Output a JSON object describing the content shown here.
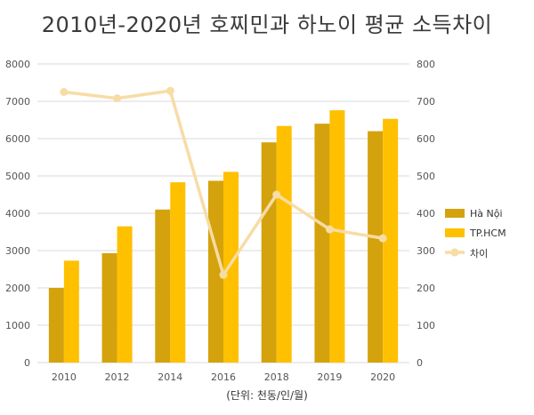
{
  "title": "2010년-2020년 호찌민과 하노이 평균 소득차이",
  "unit_note": "(단위: 천동/인/월)",
  "colors": {
    "hanoi": "#D4A20C",
    "hcm": "#FFC000",
    "diff": "#F7DCA6",
    "grid": "#D9D9D9"
  },
  "chart_data": {
    "type": "bar",
    "categories": [
      "2010",
      "2012",
      "2014",
      "2016",
      "2018",
      "2019",
      "2020"
    ],
    "series": [
      {
        "name": "Hà Nội",
        "type": "bar",
        "axis": "left",
        "values": [
          2000,
          2930,
          4100,
          4870,
          5900,
          6400,
          6200
        ]
      },
      {
        "name": "TP.HCM",
        "type": "bar",
        "axis": "left",
        "values": [
          2730,
          3650,
          4830,
          5110,
          6340,
          6760,
          6530
        ]
      },
      {
        "name": "차이",
        "type": "line",
        "axis": "right",
        "values": [
          725,
          708,
          728,
          235,
          450,
          357,
          333
        ]
      }
    ],
    "ylim_left": [
      0,
      8000
    ],
    "ylim_right": [
      0,
      800
    ],
    "yticks_left": [
      "0",
      "1000",
      "2000",
      "3000",
      "4000",
      "5000",
      "6000",
      "7000",
      "8000"
    ],
    "yticks_right": [
      "0",
      "100",
      "200",
      "300",
      "400",
      "500",
      "600",
      "700",
      "800"
    ],
    "grid": true,
    "legend_position": "right"
  }
}
